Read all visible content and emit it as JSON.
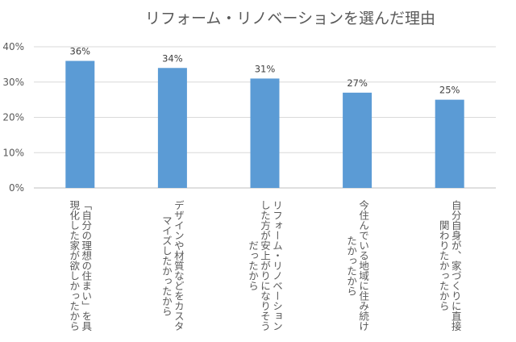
{
  "chart_data": {
    "type": "bar",
    "title": "リフォーム・リノベーションを選んだ理由",
    "categories": [
      "「自分の理想の住まい」を具\n現化した家が欲しかったから",
      "デザインや材質などをカスタ\nマイズしたかったから",
      "リフォーム・リノベーション\nした方が安上がりになりそう\nだったから",
      "今住んでいる地域に住み続け\nたかったから",
      "自分自身が、家づくりに直接\n関わりたかったから"
    ],
    "values": [
      36,
      34,
      31,
      27,
      25
    ],
    "data_labels": [
      "36%",
      "34%",
      "31%",
      "27%",
      "25%"
    ],
    "yticks": [
      "0%",
      "10%",
      "20%",
      "30%",
      "40%"
    ],
    "ylim": [
      0,
      40
    ],
    "grid": true,
    "bar_color": "#5B9BD5",
    "xlabel": "",
    "ylabel": ""
  }
}
